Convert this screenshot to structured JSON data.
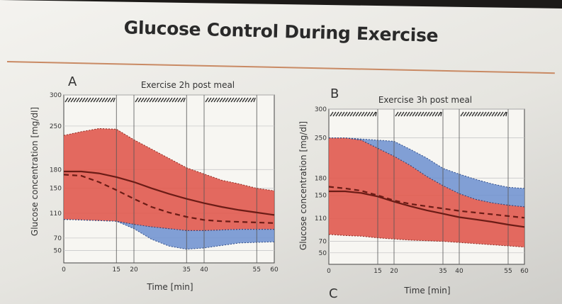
{
  "slide": {
    "title": "Glucose Control During Exercise",
    "corner_letter": "C"
  },
  "colors": {
    "red_band": "#e0554a",
    "blue_band": "#6c8fd0",
    "mean_line": "#6b1c16",
    "median_line": "#6b1c16"
  },
  "chart_data": [
    {
      "type": "area",
      "panel": "A",
      "title": "Exercise 2h post meal",
      "xlabel": "Time [min]",
      "ylabel": "Glucose concentration [mg/dl]",
      "xlim": [
        0,
        60
      ],
      "ylim": [
        30,
        300
      ],
      "x_ticks": [
        0,
        15,
        20,
        35,
        40,
        55,
        60
      ],
      "y_ticks": [
        50,
        70,
        110,
        150,
        180,
        250,
        300
      ],
      "exercise_periods": [
        [
          0,
          15
        ],
        [
          20,
          35
        ],
        [
          40,
          55
        ]
      ],
      "x": [
        0,
        5,
        10,
        15,
        20,
        25,
        30,
        35,
        40,
        45,
        50,
        55,
        60
      ],
      "series": [
        {
          "name": "",
          "style": "solid",
          "values": [
            177,
            177,
            174,
            168,
            160,
            150,
            141,
            133,
            126,
            120,
            115,
            111,
            107
          ]
        },
        {
          "name": "",
          "style": "dashed",
          "values": [
            172,
            170,
            160,
            147,
            133,
            120,
            111,
            104,
            99,
            97,
            96,
            95,
            94
          ]
        }
      ],
      "red_band": {
        "lower": [
          100,
          99,
          98,
          97,
          92,
          88,
          85,
          82,
          82,
          83,
          84,
          84,
          84
        ],
        "upper": [
          235,
          241,
          246,
          245,
          228,
          213,
          198,
          183,
          173,
          163,
          157,
          150,
          146
        ]
      },
      "blue_band": {
        "lower": [
          100,
          99,
          98,
          97,
          85,
          68,
          57,
          52,
          54,
          58,
          62,
          63,
          64
        ],
        "upper": [
          100,
          99,
          98,
          97,
          92,
          88,
          85,
          82,
          82,
          83,
          84,
          84,
          84
        ]
      }
    },
    {
      "type": "area",
      "panel": "B",
      "title": "Exercise 3h post meal",
      "xlabel": "Time [min]",
      "ylabel": "Glucose concentration [mg/dl]",
      "xlim": [
        0,
        60
      ],
      "ylim": [
        30,
        300
      ],
      "x_ticks": [
        0,
        15,
        20,
        35,
        40,
        55,
        60
      ],
      "y_ticks": [
        50,
        70,
        110,
        150,
        180,
        250,
        300
      ],
      "exercise_periods": [
        [
          0,
          15
        ],
        [
          20,
          35
        ],
        [
          40,
          55
        ]
      ],
      "x": [
        0,
        5,
        10,
        15,
        20,
        25,
        30,
        35,
        40,
        45,
        50,
        55,
        60
      ],
      "series": [
        {
          "name": "",
          "style": "solid",
          "values": [
            157,
            157,
            154,
            148,
            139,
            131,
            124,
            118,
            112,
            108,
            104,
            99,
            95
          ]
        },
        {
          "name": "",
          "style": "dashed",
          "values": [
            165,
            162,
            158,
            150,
            141,
            135,
            131,
            127,
            123,
            120,
            117,
            114,
            111
          ]
        }
      ],
      "red_band": {
        "lower": [
          82,
          80,
          79,
          76,
          74,
          72,
          71,
          70,
          68,
          66,
          64,
          62,
          60
        ],
        "upper": [
          250,
          250,
          246,
          232,
          218,
          202,
          183,
          167,
          153,
          143,
          137,
          133,
          130
        ]
      },
      "blue_band": {
        "lower": [
          250,
          250,
          246,
          232,
          218,
          202,
          183,
          167,
          153,
          143,
          137,
          133,
          130
        ],
        "upper": [
          250,
          250,
          248,
          246,
          244,
          230,
          215,
          197,
          187,
          178,
          170,
          164,
          162
        ]
      }
    }
  ]
}
